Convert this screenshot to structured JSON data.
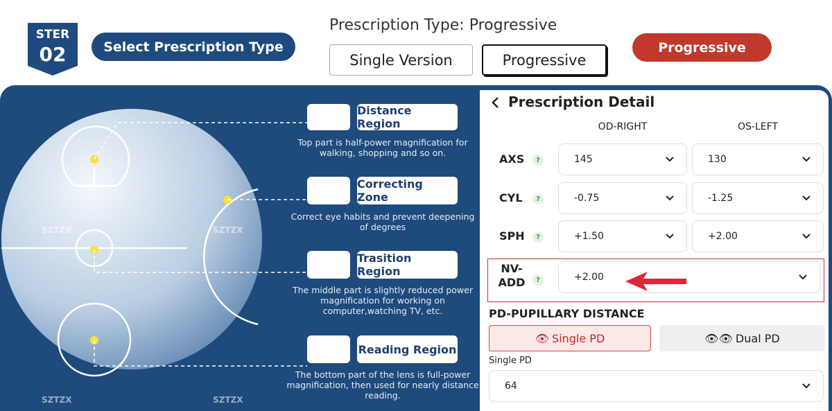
{
  "step": {
    "label": "STER",
    "number": "02"
  },
  "header": {
    "step_title": "Select Prescription Type",
    "prescription_type": "Prescription Type: Progressive",
    "options": [
      "Single Version",
      "Progressive"
    ],
    "selected_badge": "Progressive"
  },
  "watermark": "SZTZX",
  "regions": [
    {
      "title": "Distance Region",
      "description": "Top part is half-power magnification for walking, shopping and so on."
    },
    {
      "title": "Correcting Zone",
      "description": "Correct eye habits and prevent deepening of degrees"
    },
    {
      "title": "Trasition Region",
      "description": "The middle part is slightly reduced power magnification for working on computer,watching TV, etc."
    },
    {
      "title": "Reading Region",
      "description": "The bottom part of the lens is full-power magnification, then used for nearly distance reading."
    }
  ],
  "form": {
    "title": "Prescription Detail",
    "columns": [
      "OD-RIGHT",
      "OS-LEFT"
    ],
    "help": "?",
    "rows": [
      {
        "label": "AXS",
        "right": "145",
        "left": "130"
      },
      {
        "label": "CYL",
        "right": "-0.75",
        "left": "-1.25"
      },
      {
        "label": "SPH",
        "right": "+1.50",
        "left": "+2.00"
      }
    ],
    "nv_add": {
      "label": "NV-ADD",
      "value": "+2.00"
    },
    "pd": {
      "title": "PD-PUPILLARY DISTANCE",
      "options": [
        "Single PD",
        "Dual PD"
      ],
      "field_label": "Single PD",
      "value": "64"
    }
  }
}
